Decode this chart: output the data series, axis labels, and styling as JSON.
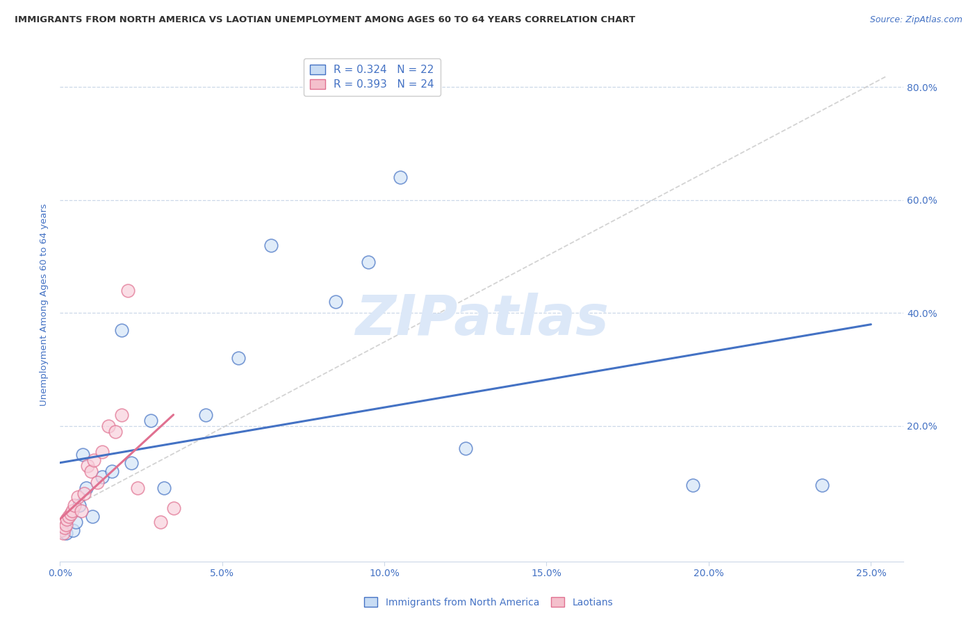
{
  "title": "IMMIGRANTS FROM NORTH AMERICA VS LAOTIAN UNEMPLOYMENT AMONG AGES 60 TO 64 YEARS CORRELATION CHART",
  "source": "Source: ZipAtlas.com",
  "ylabel": "Unemployment Among Ages 60 to 64 years",
  "x_tick_values": [
    0.0,
    5.0,
    10.0,
    15.0,
    20.0,
    25.0
  ],
  "y_tick_values": [
    20.0,
    40.0,
    60.0,
    80.0
  ],
  "xlim": [
    0.0,
    26.0
  ],
  "ylim": [
    -4.0,
    87.0
  ],
  "legend_entries": [
    {
      "label": "R = 0.324   N = 22",
      "color": "#b8d0ee"
    },
    {
      "label": "R = 0.393   N = 24",
      "color": "#f0b0c0"
    }
  ],
  "legend_bottom_entries": [
    {
      "label": "Immigrants from North America",
      "color": "#b8d0ee"
    },
    {
      "label": "Laotians",
      "color": "#f0b0c0"
    }
  ],
  "blue_scatter_x": [
    0.2,
    0.4,
    0.5,
    0.6,
    0.8,
    1.0,
    1.3,
    1.6,
    1.9,
    2.2,
    2.8,
    3.2,
    4.5,
    5.5,
    6.5,
    8.5,
    9.5,
    10.5,
    12.5,
    19.5,
    23.5,
    0.7
  ],
  "blue_scatter_y": [
    1.0,
    1.5,
    3.0,
    6.0,
    9.0,
    4.0,
    11.0,
    12.0,
    37.0,
    13.5,
    21.0,
    9.0,
    22.0,
    32.0,
    52.0,
    42.0,
    49.0,
    64.0,
    16.0,
    9.5,
    9.5,
    15.0
  ],
  "pink_scatter_x": [
    0.05,
    0.1,
    0.15,
    0.18,
    0.22,
    0.28,
    0.33,
    0.38,
    0.45,
    0.55,
    0.65,
    0.75,
    0.85,
    0.95,
    1.05,
    1.15,
    1.3,
    1.5,
    1.7,
    1.9,
    2.1,
    2.4,
    3.1,
    3.5
  ],
  "pink_scatter_y": [
    1.5,
    1.0,
    2.0,
    2.5,
    3.5,
    4.0,
    4.5,
    5.0,
    6.0,
    7.5,
    5.0,
    8.0,
    13.0,
    12.0,
    14.0,
    10.0,
    15.5,
    20.0,
    19.0,
    22.0,
    44.0,
    9.0,
    3.0,
    5.5
  ],
  "blue_line_x0": 0.0,
  "blue_line_y0": 13.5,
  "blue_line_x1": 25.0,
  "blue_line_y1": 38.0,
  "pink_line_x0": 0.0,
  "pink_line_y0": 3.5,
  "pink_line_x1": 3.5,
  "pink_line_y1": 22.0,
  "ref_line_x0": 0.5,
  "ref_line_y0": 6.0,
  "ref_line_x1": 25.5,
  "ref_line_y1": 82.0,
  "blue_color": "#4472c4",
  "pink_color": "#e07090",
  "ref_line_color": "#c8c8c8",
  "grid_color": "#ccd8e8",
  "background_color": "#ffffff",
  "title_color": "#333333",
  "label_color": "#4472c4",
  "watermark_text": "ZIPatlas",
  "watermark_color": "#dce8f8"
}
